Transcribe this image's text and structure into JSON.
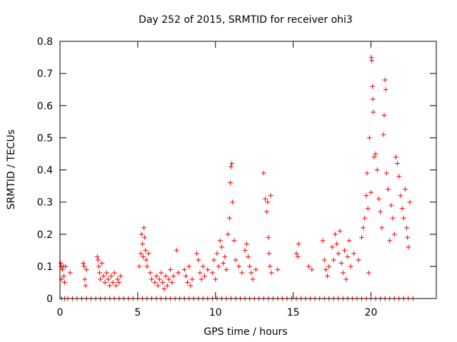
{
  "chart_data": {
    "type": "scatter",
    "title": "Day 252 of 2015, SRMTID for receiver ohi3",
    "xlabel": "GPS time / hours",
    "ylabel": "SRMTID / TECUs",
    "xlim": [
      0,
      24.2
    ],
    "ylim": [
      0,
      0.8
    ],
    "xticks": [
      0,
      5,
      10,
      15,
      20
    ],
    "xtick_labels": [
      "0",
      "5",
      "10",
      "15",
      "20"
    ],
    "yticks": [
      0,
      0.1,
      0.2,
      0.3,
      0.4,
      0.5,
      0.6,
      0.7,
      0.8
    ],
    "ytick_labels": [
      "0",
      "0.1",
      "0.2",
      "0.3",
      "0.4",
      "0.5",
      "0.6",
      "0.7",
      "0.8"
    ],
    "grid": false,
    "legend": "none",
    "marker": "plus",
    "marker_color": "#ff0000",
    "series": [
      {
        "name": "SRMTID",
        "points": [
          [
            0.05,
            0.11
          ],
          [
            0.08,
            0.1
          ],
          [
            0.1,
            0.06
          ],
          [
            0.15,
            0.09
          ],
          [
            0.2,
            0.1
          ],
          [
            0.25,
            0.07
          ],
          [
            0.3,
            0.05
          ],
          [
            0.35,
            0.1
          ],
          [
            0.65,
            0.08
          ],
          [
            1.5,
            0.11
          ],
          [
            1.55,
            0.1
          ],
          [
            1.6,
            0.06
          ],
          [
            1.65,
            0.04
          ],
          [
            1.7,
            0.09
          ],
          [
            2.4,
            0.13
          ],
          [
            2.45,
            0.12
          ],
          [
            2.5,
            0.1
          ],
          [
            2.55,
            0.08
          ],
          [
            2.6,
            0.06
          ],
          [
            2.7,
            0.11
          ],
          [
            2.8,
            0.07
          ],
          [
            2.9,
            0.05
          ],
          [
            3.0,
            0.08
          ],
          [
            3.1,
            0.06
          ],
          [
            3.2,
            0.04
          ],
          [
            3.3,
            0.07
          ],
          [
            3.4,
            0.05
          ],
          [
            3.5,
            0.08
          ],
          [
            3.6,
            0.04
          ],
          [
            3.7,
            0.06
          ],
          [
            3.8,
            0.05
          ],
          [
            3.9,
            0.07
          ],
          [
            5.1,
            0.1
          ],
          [
            5.2,
            0.14
          ],
          [
            5.25,
            0.2
          ],
          [
            5.3,
            0.17
          ],
          [
            5.35,
            0.13
          ],
          [
            5.4,
            0.22
          ],
          [
            5.45,
            0.19
          ],
          [
            5.5,
            0.15
          ],
          [
            5.55,
            0.12
          ],
          [
            5.6,
            0.1
          ],
          [
            5.7,
            0.14
          ],
          [
            5.8,
            0.08
          ],
          [
            5.9,
            0.06
          ],
          [
            6.1,
            0.05
          ],
          [
            6.2,
            0.07
          ],
          [
            6.3,
            0.04
          ],
          [
            6.4,
            0.06
          ],
          [
            6.5,
            0.08
          ],
          [
            6.6,
            0.05
          ],
          [
            6.7,
            0.03
          ],
          [
            6.8,
            0.07
          ],
          [
            6.9,
            0.04
          ],
          [
            7.0,
            0.06
          ],
          [
            7.1,
            0.09
          ],
          [
            7.2,
            0.05
          ],
          [
            7.3,
            0.07
          ],
          [
            7.5,
            0.15
          ],
          [
            7.6,
            0.08
          ],
          [
            8.0,
            0.09
          ],
          [
            8.1,
            0.07
          ],
          [
            8.2,
            0.05
          ],
          [
            8.3,
            0.1
          ],
          [
            8.4,
            0.04
          ],
          [
            8.5,
            0.06
          ],
          [
            8.8,
            0.14
          ],
          [
            8.9,
            0.12
          ],
          [
            9.0,
            0.08
          ],
          [
            9.1,
            0.06
          ],
          [
            9.2,
            0.1
          ],
          [
            9.3,
            0.07
          ],
          [
            9.5,
            0.09
          ],
          [
            9.8,
            0.08
          ],
          [
            9.9,
            0.12
          ],
          [
            10.0,
            0.06
          ],
          [
            10.1,
            0.14
          ],
          [
            10.2,
            0.1
          ],
          [
            10.3,
            0.18
          ],
          [
            10.4,
            0.16
          ],
          [
            10.5,
            0.11
          ],
          [
            10.6,
            0.13
          ],
          [
            10.7,
            0.09
          ],
          [
            10.8,
            0.2
          ],
          [
            10.9,
            0.25
          ],
          [
            10.95,
            0.36
          ],
          [
            11.0,
            0.41
          ],
          [
            11.05,
            0.42
          ],
          [
            11.1,
            0.3
          ],
          [
            11.2,
            0.18
          ],
          [
            11.3,
            0.12
          ],
          [
            11.5,
            0.1
          ],
          [
            11.7,
            0.08
          ],
          [
            11.9,
            0.15
          ],
          [
            12.0,
            0.17
          ],
          [
            12.1,
            0.13
          ],
          [
            12.2,
            0.1
          ],
          [
            12.3,
            0.08
          ],
          [
            12.4,
            0.06
          ],
          [
            12.6,
            0.09
          ],
          [
            13.1,
            0.39
          ],
          [
            13.2,
            0.31
          ],
          [
            13.3,
            0.27
          ],
          [
            13.35,
            0.3
          ],
          [
            13.4,
            0.19
          ],
          [
            13.45,
            0.14
          ],
          [
            13.5,
            0.1
          ],
          [
            13.55,
            0.32
          ],
          [
            13.6,
            0.08
          ],
          [
            14.0,
            0.09
          ],
          [
            15.2,
            0.14
          ],
          [
            15.3,
            0.13
          ],
          [
            15.35,
            0.17
          ],
          [
            16.0,
            0.1
          ],
          [
            16.2,
            0.09
          ],
          [
            16.9,
            0.18
          ],
          [
            17.0,
            0.12
          ],
          [
            17.1,
            0.09
          ],
          [
            17.2,
            0.07
          ],
          [
            17.3,
            0.1
          ],
          [
            17.5,
            0.16
          ],
          [
            17.6,
            0.12
          ],
          [
            17.7,
            0.2
          ],
          [
            17.8,
            0.17
          ],
          [
            17.9,
            0.14
          ],
          [
            18.0,
            0.21
          ],
          [
            18.1,
            0.11
          ],
          [
            18.2,
            0.08
          ],
          [
            18.3,
            0.15
          ],
          [
            18.4,
            0.06
          ],
          [
            18.5,
            0.13
          ],
          [
            18.6,
            0.18
          ],
          [
            18.7,
            0.1
          ],
          [
            18.9,
            0.14
          ],
          [
            19.2,
            0.12
          ],
          [
            19.4,
            0.19
          ],
          [
            19.5,
            0.22
          ],
          [
            19.6,
            0.25
          ],
          [
            19.7,
            0.32
          ],
          [
            19.75,
            0.39
          ],
          [
            19.8,
            0.28
          ],
          [
            19.85,
            0.08
          ],
          [
            19.9,
            0.5
          ],
          [
            20.0,
            0.33
          ],
          [
            20.02,
            0.75
          ],
          [
            20.05,
            0.74
          ],
          [
            20.1,
            0.66
          ],
          [
            20.12,
            0.62
          ],
          [
            20.15,
            0.58
          ],
          [
            20.2,
            0.44
          ],
          [
            20.3,
            0.45
          ],
          [
            20.4,
            0.4
          ],
          [
            20.5,
            0.31
          ],
          [
            20.6,
            0.27
          ],
          [
            20.7,
            0.22
          ],
          [
            20.8,
            0.51
          ],
          [
            20.85,
            0.57
          ],
          [
            20.9,
            0.68
          ],
          [
            20.95,
            0.65
          ],
          [
            21.0,
            0.39
          ],
          [
            21.1,
            0.34
          ],
          [
            21.2,
            0.18
          ],
          [
            21.3,
            0.29
          ],
          [
            21.4,
            0.25
          ],
          [
            21.5,
            0.2
          ],
          [
            21.6,
            0.44
          ],
          [
            21.7,
            0.42
          ],
          [
            21.8,
            0.38
          ],
          [
            21.9,
            0.32
          ],
          [
            22.0,
            0.28
          ],
          [
            22.1,
            0.25
          ],
          [
            22.2,
            0.34
          ],
          [
            22.3,
            0.22
          ],
          [
            22.35,
            0.19
          ],
          [
            22.4,
            0.16
          ],
          [
            22.5,
            0.3
          ]
        ],
        "zero_points": [
          0.1,
          0.3,
          0.5,
          0.8,
          1.1,
          1.4,
          1.7,
          2.0,
          2.3,
          2.6,
          2.9,
          3.2,
          3.5,
          3.8,
          4.1,
          4.4,
          4.7,
          5.0,
          5.3,
          5.6,
          5.9,
          6.2,
          6.5,
          6.8,
          7.1,
          7.4,
          7.7,
          8.0,
          8.3,
          8.6,
          8.9,
          9.2,
          9.5,
          9.8,
          10.1,
          10.4,
          10.7,
          11.0,
          11.3,
          11.6,
          11.9,
          12.2,
          12.5,
          12.8,
          13.1,
          13.4,
          13.7,
          14.0,
          14.3,
          14.6,
          14.9,
          15.2,
          15.5,
          15.8,
          16.1,
          16.4,
          16.7,
          17.0,
          17.3,
          17.6,
          17.9,
          18.2,
          18.5,
          18.8,
          19.1,
          19.4,
          19.7,
          20.0,
          20.3,
          20.6,
          20.9,
          21.2,
          21.5,
          21.8,
          22.1,
          22.4,
          22.7
        ]
      }
    ]
  }
}
